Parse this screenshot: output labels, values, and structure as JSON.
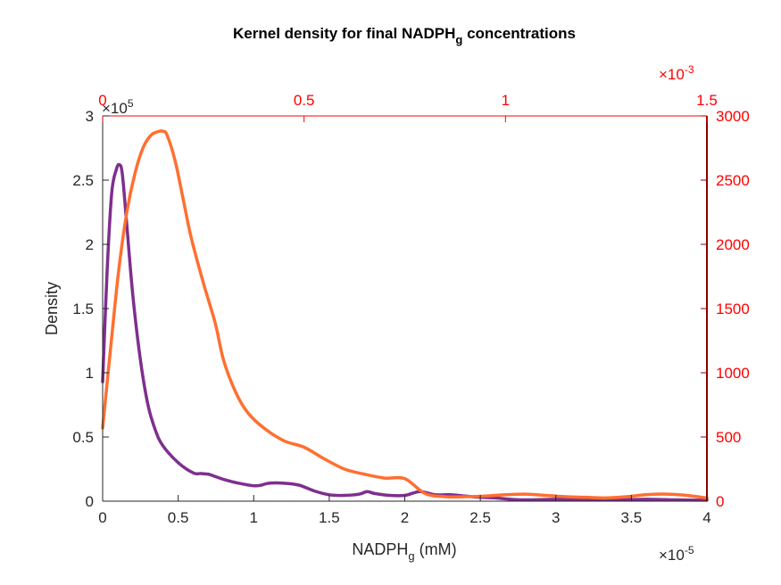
{
  "chart_data": {
    "type": "line",
    "title": "Kernel density for final NADPH",
    "title_subscript": "g",
    "title_suffix": " concentrations",
    "xlabel": "NADPH",
    "xlabel_subscript": "g",
    "xlabel_suffix": " (mM)",
    "ylabel": "Density",
    "colors": {
      "purple_series": "#7e2f8e",
      "orange_series": "#ff6f30",
      "secondary_axis": "#ff0000",
      "primary_axis": "#262626"
    },
    "bottom_axis": {
      "lim": [
        0,
        4e-05
      ],
      "ticks": [
        0,
        5e-06,
        1e-05,
        1.5e-05,
        2e-05,
        2.5e-05,
        3e-05,
        3.5e-05,
        4e-05
      ],
      "tick_labels": [
        "0",
        "0.5",
        "1",
        "1.5",
        "2",
        "2.5",
        "3",
        "3.5",
        "4"
      ],
      "exponent_base": "×10",
      "exponent_power": "-5"
    },
    "left_axis": {
      "lim": [
        0,
        300000
      ],
      "ticks": [
        0,
        50000,
        100000,
        150000,
        200000,
        250000,
        300000
      ],
      "tick_labels": [
        "0",
        "0.5",
        "1",
        "1.5",
        "2",
        "2.5",
        "3"
      ],
      "exponent_base": "×10",
      "exponent_power": "5"
    },
    "top_axis": {
      "lim": [
        0,
        0.0015
      ],
      "ticks": [
        0,
        0.0005,
        0.001,
        0.0015
      ],
      "tick_labels": [
        "0",
        "0.5",
        "1",
        "1.5"
      ],
      "exponent_base": "×10",
      "exponent_power": "-3"
    },
    "right_axis": {
      "lim": [
        0,
        3000
      ],
      "ticks": [
        0,
        500,
        1000,
        1500,
        2000,
        2500,
        3000
      ],
      "tick_labels": [
        "0",
        "500",
        "1000",
        "1500",
        "2000",
        "2500",
        "3000"
      ]
    },
    "series": [
      {
        "color": "#7e2f8e",
        "axes": "bottom-left",
        "x": [
          0,
          3e-07,
          6e-07,
          9e-07,
          1.1e-06,
          1.3e-06,
          1.6e-06,
          2e-06,
          2.5e-06,
          3e-06,
          3.5e-06,
          4e-06,
          5e-06,
          6e-06,
          6.5e-06,
          7e-06,
          7.5e-06,
          8e-06,
          9e-06,
          1e-05,
          1.05e-05,
          1.1e-05,
          1.2e-05,
          1.3e-05,
          1.4e-05,
          1.5e-05,
          1.6e-05,
          1.7e-05,
          1.75e-05,
          1.8e-05,
          1.9e-05,
          2e-05,
          2.1e-05,
          2.2e-05,
          2.3e-05,
          2.4e-05,
          2.5e-05,
          2.6e-05,
          2.7e-05,
          2.8e-05,
          3e-05,
          3.2e-05,
          3.4e-05,
          3.6e-05,
          3.8e-05,
          4e-05
        ],
        "y": [
          93000,
          180000,
          240000,
          258000,
          262000,
          255000,
          215000,
          160000,
          110000,
          75000,
          55000,
          43000,
          30000,
          22000,
          21500,
          21000,
          19000,
          17000,
          14000,
          12000,
          12500,
          14000,
          14000,
          12500,
          8000,
          5000,
          4500,
          5500,
          7500,
          6000,
          4500,
          4500,
          7500,
          5000,
          5000,
          4000,
          3000,
          2500,
          1500,
          1000,
          1500,
          1500,
          1000,
          1500,
          1000,
          800
        ]
      },
      {
        "color": "#ff6f30",
        "axes": "top-right",
        "x": [
          0,
          2e-05,
          4e-05,
          6e-05,
          8e-05,
          0.0001,
          0.00012,
          0.00014,
          0.00015,
          0.00016,
          0.00018,
          0.0002,
          0.00022,
          0.00025,
          0.00028,
          0.0003,
          0.00033,
          0.00036,
          0.0004,
          0.00045,
          0.0005,
          0.00055,
          0.0006,
          0.00065,
          0.0007,
          0.00075,
          0.0008,
          0.00085,
          0.0009,
          0.00095,
          0.001,
          0.00105,
          0.0011,
          0.00115,
          0.0012,
          0.00125,
          0.0013,
          0.00135,
          0.0014,
          0.00145,
          0.0015
        ],
        "y": [
          570,
          1200,
          1800,
          2250,
          2550,
          2750,
          2850,
          2880,
          2880,
          2850,
          2650,
          2350,
          2050,
          1700,
          1380,
          1100,
          850,
          690,
          570,
          470,
          420,
          330,
          250,
          210,
          180,
          175,
          60,
          35,
          35,
          40,
          50,
          55,
          45,
          35,
          30,
          25,
          35,
          50,
          55,
          45,
          25
        ]
      }
    ]
  }
}
